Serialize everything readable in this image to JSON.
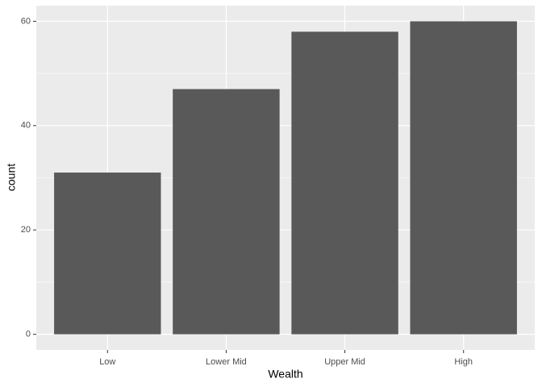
{
  "chart_data": {
    "type": "bar",
    "x_label": "Wealth",
    "y_label": "count",
    "categories": [
      "Low",
      "Lower Mid",
      "Upper Mid",
      "High"
    ],
    "values": [
      31,
      47,
      58,
      60
    ],
    "color": "#595959",
    "ylim": [
      -3,
      63
    ],
    "yticks": [
      0,
      20,
      40,
      60
    ],
    "grid": true
  }
}
